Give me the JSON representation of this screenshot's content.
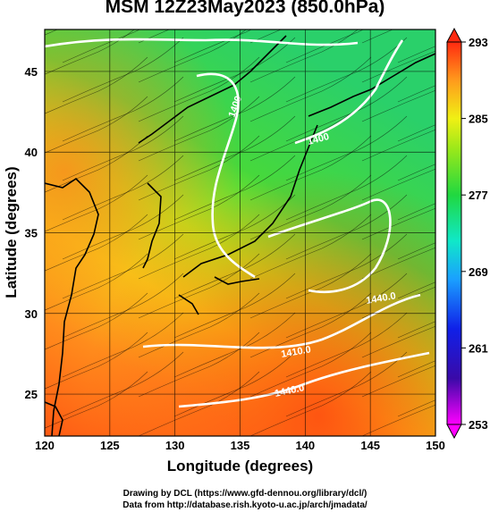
{
  "title": "MSM 12Z23May2023 (850.0hPa)",
  "x_axis": {
    "label": "Longitude (degrees)",
    "ticks": [
      "120",
      "125",
      "130",
      "135",
      "140",
      "145",
      "150"
    ],
    "range": [
      120,
      150
    ]
  },
  "y_axis": {
    "label": "Latitude  (degrees)",
    "ticks": [
      "25",
      "30",
      "35",
      "40",
      "45"
    ],
    "range": [
      22.4,
      47.6
    ]
  },
  "colorbar": {
    "ticks": [
      "293",
      "285",
      "277",
      "269",
      "261",
      "253"
    ],
    "range": [
      253,
      293
    ]
  },
  "contour_labels": [
    "1400",
    "1400",
    "1440.0",
    "1410.0",
    "1440.0"
  ],
  "credits": {
    "line1": "Drawing by DCL (https://www.gfd-dennou.org/library/dcl/)",
    "line2": "Data from http://database.rish.kyoto-u.ac.jp/arch/jmadata/"
  },
  "colors": {
    "warm": "#ff6a1a",
    "mid": "#e8e614",
    "cool": "#2fd84a",
    "contour": "#ffffff"
  }
}
